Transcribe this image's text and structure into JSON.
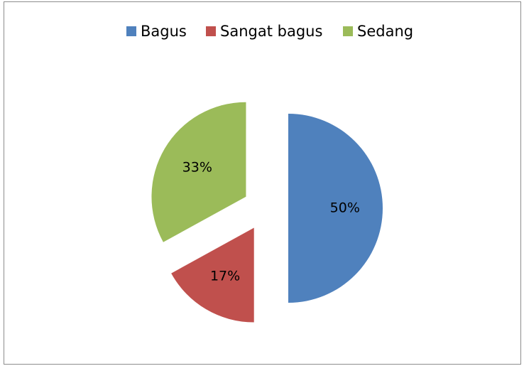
{
  "chart_data": {
    "type": "pie",
    "categories": [
      "Bagus",
      "Sangat bagus",
      "Sedang"
    ],
    "series": [
      {
        "values": [
          50,
          17,
          33
        ],
        "value_labels": [
          "50%",
          "17%",
          "33%"
        ],
        "colors": [
          "#4f81bd",
          "#c0504d",
          "#9bbb59"
        ]
      }
    ],
    "legend": "top",
    "exploded": true
  }
}
